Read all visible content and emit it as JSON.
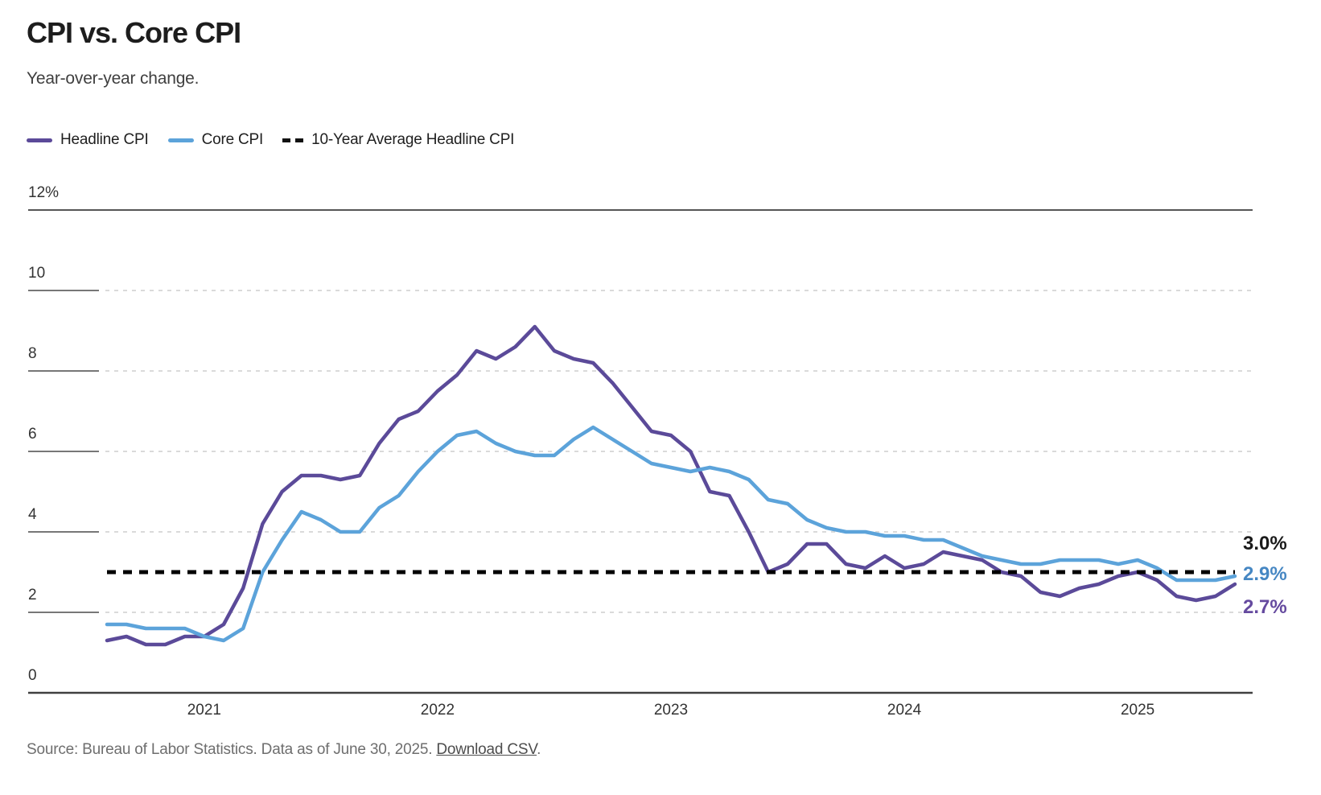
{
  "header": {
    "title": "CPI vs. Core CPI",
    "subtitle": "Year-over-year change."
  },
  "legend": [
    {
      "label": "Headline CPI",
      "color": "#5B4A99",
      "type": "line"
    },
    {
      "label": "Core CPI",
      "color": "#5CA3DA",
      "type": "line"
    },
    {
      "label": "10-Year Average Headline CPI",
      "color": "#111111",
      "type": "dashed"
    }
  ],
  "chart_data": {
    "type": "line",
    "title": "CPI vs. Core CPI",
    "subtitle": "Year-over-year change.",
    "xlabel": "",
    "ylabel": "",
    "ylim": [
      0,
      12
    ],
    "grid": "horizontal-dashed",
    "legend_position": "top",
    "yticks": [
      {
        "value": 12,
        "label": "12%"
      },
      {
        "value": 10,
        "label": "10"
      },
      {
        "value": 8,
        "label": "8"
      },
      {
        "value": 6,
        "label": "6"
      },
      {
        "value": 4,
        "label": "4"
      },
      {
        "value": 2,
        "label": "2"
      },
      {
        "value": 0,
        "label": "0"
      }
    ],
    "x_year_ticks": [
      "2021",
      "2022",
      "2023",
      "2024",
      "2025"
    ],
    "x": [
      "2020-08",
      "2020-09",
      "2020-10",
      "2020-11",
      "2020-12",
      "2021-01",
      "2021-02",
      "2021-03",
      "2021-04",
      "2021-05",
      "2021-06",
      "2021-07",
      "2021-08",
      "2021-09",
      "2021-10",
      "2021-11",
      "2021-12",
      "2022-01",
      "2022-02",
      "2022-03",
      "2022-04",
      "2022-05",
      "2022-06",
      "2022-07",
      "2022-08",
      "2022-09",
      "2022-10",
      "2022-11",
      "2022-12",
      "2023-01",
      "2023-02",
      "2023-03",
      "2023-04",
      "2023-05",
      "2023-06",
      "2023-07",
      "2023-08",
      "2023-09",
      "2023-10",
      "2023-11",
      "2023-12",
      "2024-01",
      "2024-02",
      "2024-03",
      "2024-04",
      "2024-05",
      "2024-06",
      "2024-07",
      "2024-08",
      "2024-09",
      "2024-10",
      "2024-11",
      "2024-12",
      "2025-01",
      "2025-02",
      "2025-03",
      "2025-04",
      "2025-05",
      "2025-06"
    ],
    "series": [
      {
        "name": "Headline CPI",
        "color": "#5B4A99",
        "values": [
          1.3,
          1.4,
          1.2,
          1.2,
          1.4,
          1.4,
          1.7,
          2.6,
          4.2,
          5.0,
          5.4,
          5.4,
          5.3,
          5.4,
          6.2,
          6.8,
          7.0,
          7.5,
          7.9,
          8.5,
          8.3,
          8.6,
          9.1,
          8.5,
          8.3,
          8.2,
          7.7,
          7.1,
          6.5,
          6.4,
          6.0,
          5.0,
          4.9,
          4.0,
          3.0,
          3.2,
          3.7,
          3.7,
          3.2,
          3.1,
          3.4,
          3.1,
          3.2,
          3.5,
          3.4,
          3.3,
          3.0,
          2.9,
          2.5,
          2.4,
          2.6,
          2.7,
          2.9,
          3.0,
          2.8,
          2.4,
          2.3,
          2.4,
          2.7
        ]
      },
      {
        "name": "Core CPI",
        "color": "#5CA3DA",
        "values": [
          1.7,
          1.7,
          1.6,
          1.6,
          1.6,
          1.4,
          1.3,
          1.6,
          3.0,
          3.8,
          4.5,
          4.3,
          4.0,
          4.0,
          4.6,
          4.9,
          5.5,
          6.0,
          6.4,
          6.5,
          6.2,
          6.0,
          5.9,
          5.9,
          6.3,
          6.6,
          6.3,
          6.0,
          5.7,
          5.6,
          5.5,
          5.6,
          5.5,
          5.3,
          4.8,
          4.7,
          4.3,
          4.1,
          4.0,
          4.0,
          3.9,
          3.9,
          3.8,
          3.8,
          3.6,
          3.4,
          3.3,
          3.2,
          3.2,
          3.3,
          3.3,
          3.3,
          3.2,
          3.3,
          3.1,
          2.8,
          2.8,
          2.8,
          2.9
        ]
      }
    ],
    "reference_line": {
      "name": "10-Year Average Headline CPI",
      "value": 3.0,
      "style": "dashed",
      "color": "#000000"
    },
    "end_labels": [
      {
        "text": "3.0%",
        "color": "#1a1a1a"
      },
      {
        "text": "2.9%",
        "color": "#4687C3"
      },
      {
        "text": "2.7%",
        "color": "#654A9F"
      }
    ]
  },
  "footer": {
    "source_prefix": "Source: Bureau of Labor Statistics. Data as of June 30, 2025. ",
    "link_label": "Download CSV",
    "suffix": "."
  }
}
